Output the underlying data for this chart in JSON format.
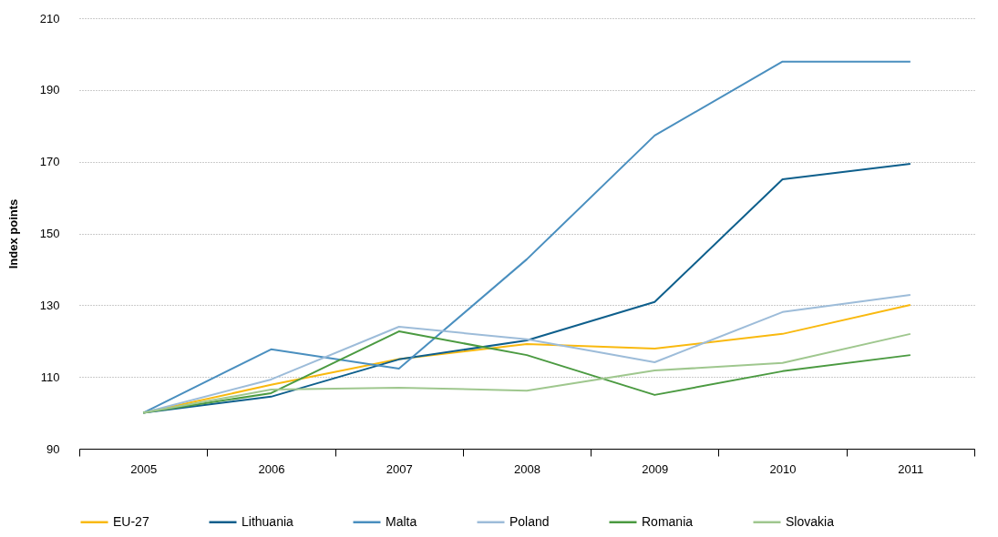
{
  "chart_data": {
    "type": "line",
    "ylabel": "Index points",
    "categories": [
      "2005",
      "2006",
      "2007",
      "2008",
      "2009",
      "2010",
      "2011"
    ],
    "ylim": [
      90,
      210
    ],
    "yticks": [
      90,
      110,
      130,
      150,
      170,
      190,
      210
    ],
    "grid": "y",
    "legend": "bottom",
    "marker": "none",
    "line_style": "solid",
    "series": [
      {
        "name": "EU-27",
        "color": "#f9b90f",
        "values": [
          100,
          107.8,
          115,
          119.2,
          117.9,
          122,
          130.1
        ]
      },
      {
        "name": "Lithuania",
        "color": "#0e5f8c",
        "values": [
          100,
          104.5,
          114.9,
          120.2,
          130.9,
          165.1,
          169.4
        ]
      },
      {
        "name": "Malta",
        "color": "#4a8fbf",
        "values": [
          100,
          117.7,
          112.3,
          142.8,
          177.3,
          197.9,
          197.9
        ]
      },
      {
        "name": "Poland",
        "color": "#9dbcd9",
        "values": [
          100,
          109.3,
          124,
          120.5,
          114.1,
          128.1,
          132.9
        ]
      },
      {
        "name": "Romania",
        "color": "#4b9a41",
        "values": [
          100,
          105.5,
          122.7,
          116.1,
          105,
          111.6,
          116.1
        ]
      },
      {
        "name": "Slovakia",
        "color": "#9fc78e",
        "values": [
          100,
          106.5,
          107,
          106.2,
          111.8,
          113.9,
          122
        ]
      }
    ]
  }
}
